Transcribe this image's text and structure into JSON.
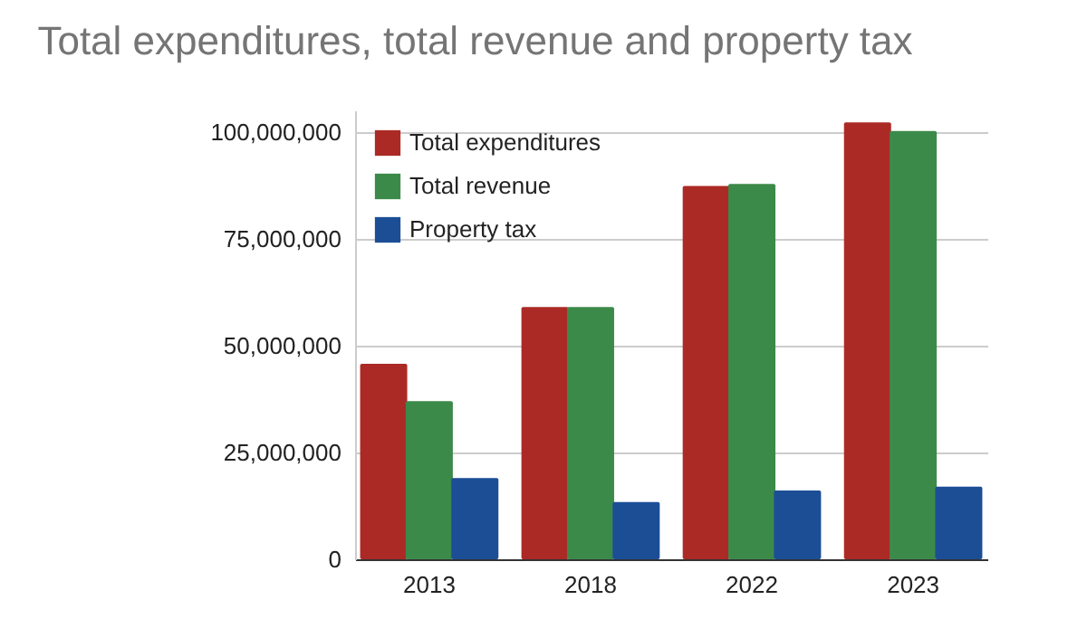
{
  "chart_data": {
    "type": "bar",
    "title": "Total expenditures, total revenue and property tax",
    "categories": [
      "2013",
      "2018",
      "2022",
      "2023"
    ],
    "series": [
      {
        "name": "Total expenditures",
        "color": "#ab2a25",
        "values": [
          45700000,
          59000000,
          87300000,
          102200000
        ]
      },
      {
        "name": "Total revenue",
        "color": "#3c8a4a",
        "values": [
          37000000,
          59000000,
          87800000,
          100200000
        ]
      },
      {
        "name": "Property tax",
        "color": "#1c4e96",
        "values": [
          19000000,
          13400000,
          16100000,
          17000000
        ]
      }
    ],
    "ylim": [
      0,
      105000000
    ],
    "yticks": [
      0,
      {
        "value": 25000000,
        "label": "25,000,000"
      },
      {
        "value": 50000000,
        "label": "50,000,000"
      },
      {
        "value": 75000000,
        "label": "75,000,000"
      },
      {
        "value": 100000000,
        "label": "100,000,000"
      }
    ],
    "grid": "y",
    "legend": "top left"
  }
}
